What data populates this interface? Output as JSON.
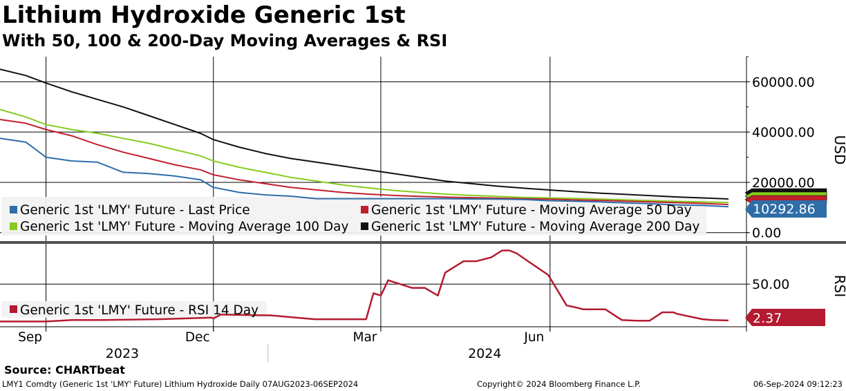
{
  "title": "Lithium Hydroxide Generic 1st",
  "subtitle": "With 50, 100 & 200-Day Moving Averages & RSI",
  "source": "Source: CHARTbeat",
  "footer": {
    "left": "LMY1 Comdty (Generic 1st 'LMY' Future) Lithium Hydroxide  Daily 07AUG2023-06SEP2024",
    "middle": "Copyright© 2024 Bloomberg Finance L.P.",
    "right": "06-Sep-2024 09:12:23"
  },
  "colors": {
    "last_price": "#2e6da8",
    "ma50": "#c0202e",
    "ma100": "#86cc1e",
    "ma200": "#111111",
    "rsi": "#b41a30",
    "grid": "#000000",
    "divider": "#505050"
  },
  "chart_data": [
    {
      "type": "line",
      "panel": "price",
      "ylabel": "USD",
      "ylim": [
        -2000,
        70000
      ],
      "yticks": [
        "60000.00",
        "40000.00",
        "20000.00",
        "0.00"
      ],
      "ytick_values": [
        60000,
        40000,
        20000,
        0
      ],
      "x": [
        "2023-08-07",
        "2023-08-21",
        "2023-09-01",
        "2023-09-15",
        "2023-09-29",
        "2023-10-13",
        "2023-10-27",
        "2023-11-10",
        "2023-11-24",
        "2023-12-01",
        "2023-12-15",
        "2023-12-29",
        "2024-01-12",
        "2024-01-26",
        "2024-02-09",
        "2024-02-23",
        "2024-03-08",
        "2024-03-22",
        "2024-04-05",
        "2024-04-19",
        "2024-05-03",
        "2024-05-17",
        "2024-05-31",
        "2024-06-14",
        "2024-06-28",
        "2024-07-12",
        "2024-07-26",
        "2024-08-09",
        "2024-08-23",
        "2024-09-06"
      ],
      "series": [
        {
          "name": "Generic 1st 'LMY' Future - Last Price",
          "color_key": "last_price",
          "values": [
            37500,
            36000,
            30000,
            28500,
            28000,
            24000,
            23500,
            22500,
            21000,
            18000,
            16000,
            15000,
            14500,
            13500,
            13500,
            13500,
            13500,
            13500,
            13500,
            13400,
            13300,
            13200,
            12700,
            12500,
            12200,
            11800,
            11500,
            11000,
            10800,
            10292.86
          ]
        },
        {
          "name": "Generic 1st 'LMY' Future - Moving Average 50 Day",
          "color_key": "ma50",
          "values": [
            45000,
            43500,
            41000,
            38500,
            35000,
            32000,
            29500,
            27000,
            25000,
            23000,
            21000,
            19500,
            18000,
            17000,
            16000,
            15300,
            14800,
            14400,
            14100,
            13900,
            13700,
            13500,
            13300,
            13000,
            12800,
            12500,
            12200,
            11900,
            11600,
            11200
          ]
        },
        {
          "name": "Generic 1st 'LMY' Future - Moving Average 100 Day",
          "color_key": "ma100",
          "values": [
            49000,
            46000,
            43000,
            41000,
            39500,
            37500,
            35500,
            33000,
            30500,
            28500,
            26000,
            24000,
            22000,
            20500,
            19000,
            17800,
            16800,
            16000,
            15300,
            14800,
            14400,
            14000,
            13800,
            13600,
            13300,
            13000,
            12700,
            12400,
            12200,
            12000
          ]
        },
        {
          "name": "Generic 1st 'LMY' Future - Moving Average 200 Day",
          "color_key": "ma200",
          "values": [
            65000,
            62500,
            59500,
            56000,
            53000,
            50000,
            46500,
            43000,
            39500,
            37000,
            34000,
            31500,
            29500,
            28000,
            26500,
            25000,
            23500,
            22000,
            20500,
            19500,
            18500,
            17700,
            17000,
            16300,
            15700,
            15200,
            14700,
            14200,
            13800,
            13400
          ]
        }
      ],
      "last_value_label": "10292.86",
      "legend_position": "bottom-left"
    },
    {
      "type": "line",
      "panel": "rsi",
      "ylabel": "RSI",
      "ylim": [
        -5,
        100
      ],
      "yticks": [
        "50.00"
      ],
      "ytick_values": [
        50
      ],
      "x": [
        "2023-08-07",
        "2023-09-01",
        "2023-09-15",
        "2023-10-01",
        "2023-11-01",
        "2023-11-30",
        "2023-12-01",
        "2023-12-05",
        "2023-12-06",
        "2024-01-01",
        "2024-01-25",
        "2024-02-15",
        "2024-02-22",
        "2024-02-26",
        "2024-03-01",
        "2024-03-05",
        "2024-03-18",
        "2024-03-20",
        "2024-03-25",
        "2024-04-01",
        "2024-04-05",
        "2024-04-15",
        "2024-04-22",
        "2024-04-30",
        "2024-05-06",
        "2024-05-10",
        "2024-05-14",
        "2024-05-20",
        "2024-05-31",
        "2024-06-10",
        "2024-06-14",
        "2024-06-19",
        "2024-07-01",
        "2024-07-10",
        "2024-07-18",
        "2024-07-25",
        "2024-08-01",
        "2024-08-07",
        "2024-08-09",
        "2024-08-23",
        "2024-08-28",
        "2024-09-06"
      ],
      "series": [
        {
          "name": "Generic 1st 'LMY' Future - RSI 14 Day",
          "color_key": "rsi",
          "values": [
            1,
            1,
            3,
            3,
            4,
            6,
            5,
            10,
            10,
            9,
            4,
            4,
            4,
            38,
            35,
            55,
            45,
            45,
            45,
            35,
            65,
            80,
            80,
            85,
            94,
            94,
            90,
            80,
            62,
            22,
            20,
            17,
            17,
            3,
            2,
            2,
            13,
            13,
            11,
            4,
            3,
            2.37
          ]
        }
      ],
      "last_value_label": "2.37",
      "legend_position": "bottom-left"
    }
  ],
  "x_axis": {
    "month_labels": [
      {
        "label": "Sep",
        "date": "2023-09-01"
      },
      {
        "label": "Dec",
        "date": "2023-12-01"
      },
      {
        "label": "Mar",
        "date": "2024-03-01"
      },
      {
        "label": "Jun",
        "date": "2024-06-01"
      }
    ],
    "year_labels": [
      {
        "label": "2023",
        "date": "2023-10-17"
      },
      {
        "label": "2024",
        "date": "2024-05-01"
      }
    ],
    "start": "2023-08-07",
    "end": "2024-09-06"
  }
}
